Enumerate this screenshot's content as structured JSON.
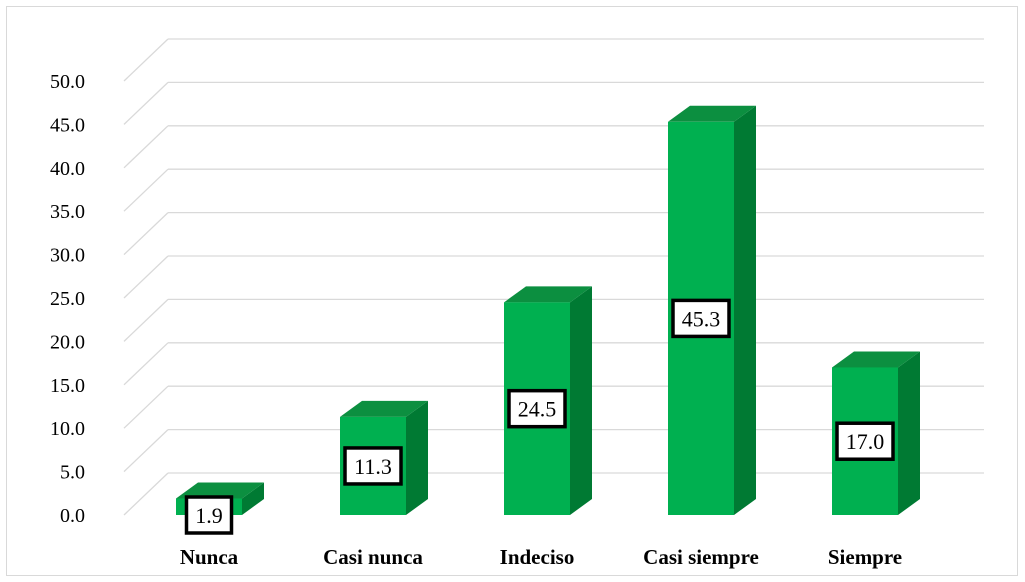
{
  "chart_data": {
    "type": "bar",
    "style": "3d-column",
    "categories": [
      "Nunca",
      "Casi nunca",
      "Indeciso",
      "Casi siempre",
      "Siempre"
    ],
    "values": [
      1.9,
      11.3,
      24.5,
      45.3,
      17.0
    ],
    "data_labels": [
      "1.9",
      "11.3",
      "24.5",
      "45.3",
      "17.0"
    ],
    "yticks": [
      "0.0",
      "5.0",
      "10.0",
      "15.0",
      "20.0",
      "25.0",
      "30.0",
      "35.0",
      "40.0",
      "45.0",
      "50.0"
    ],
    "ylim": [
      0,
      50
    ],
    "title": "",
    "xlabel": "",
    "ylabel": "",
    "grid": true,
    "legend": "none",
    "colors": {
      "front": "#00b050",
      "top": "#0c8f40",
      "side": "#007a33",
      "grid": "#d9d9d9",
      "label_border": "#000000"
    }
  }
}
